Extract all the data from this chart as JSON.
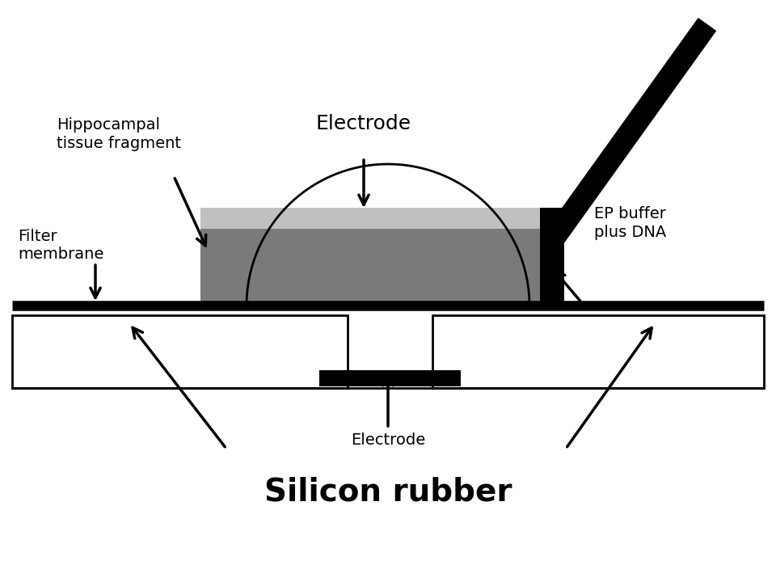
{
  "bg_color": "#ffffff",
  "labels": {
    "hippocampal_1": "Hippocampal",
    "hippocampal_2": "tissue fragment",
    "filter_membrane_1": "Filter",
    "filter_membrane_2": "membrane",
    "electrode_top": "Electrode",
    "ep_buffer_1": "EP buffer",
    "ep_buffer_2": "plus DNA",
    "electrode_bottom": "Electrode",
    "silicon_rubber": "Silicon rubber"
  },
  "colors": {
    "black": "#000000",
    "dark_gray": "#7a7a7a",
    "light_gray": "#c0c0c0",
    "white": "#ffffff"
  },
  "fig_width": 9.6,
  "fig_height": 7.2,
  "dpi": 100
}
